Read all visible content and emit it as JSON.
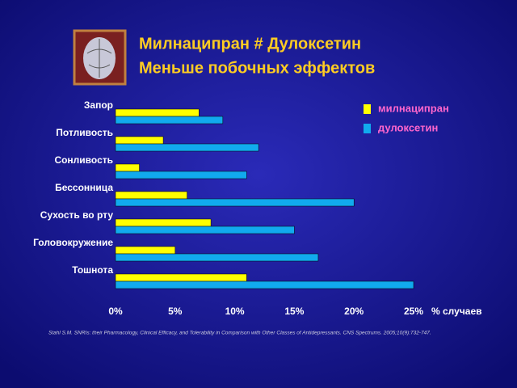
{
  "chart_data": {
    "type": "bar",
    "orientation": "horizontal",
    "title": "Милнаципран # Дулоксетин",
    "subtitle": "Меньше побочных эффектов",
    "categories": [
      "Запор",
      "Потливость",
      "Сонливость",
      "Бессонница",
      "Сухость во рту",
      "Головокружение",
      "Тошнота"
    ],
    "series": [
      {
        "name": "милнаципран",
        "color": "#ffff00",
        "values": [
          7,
          4,
          2,
          6,
          8,
          5,
          11
        ]
      },
      {
        "name": "дулоксетин",
        "color": "#11aaee",
        "values": [
          9,
          12,
          11,
          20,
          15,
          17,
          25
        ]
      }
    ],
    "xlim": [
      0,
      25
    ],
    "xticks": [
      {
        "value": 0,
        "label": "0%"
      },
      {
        "value": 5,
        "label": "5%"
      },
      {
        "value": 10,
        "label": "10%"
      },
      {
        "value": 15,
        "label": "15%"
      },
      {
        "value": 20,
        "label": "20%"
      },
      {
        "value": 25,
        "label": "25%"
      }
    ],
    "xlabel": "% случаев",
    "footnote": "Stahl S.M. SNRIs: their Pharmacology, Clinical Efficacy, and Tolerability in Comparison with Other Classes of Antidepressants. CNS Spectrums. 2005;10(9):732-747."
  }
}
